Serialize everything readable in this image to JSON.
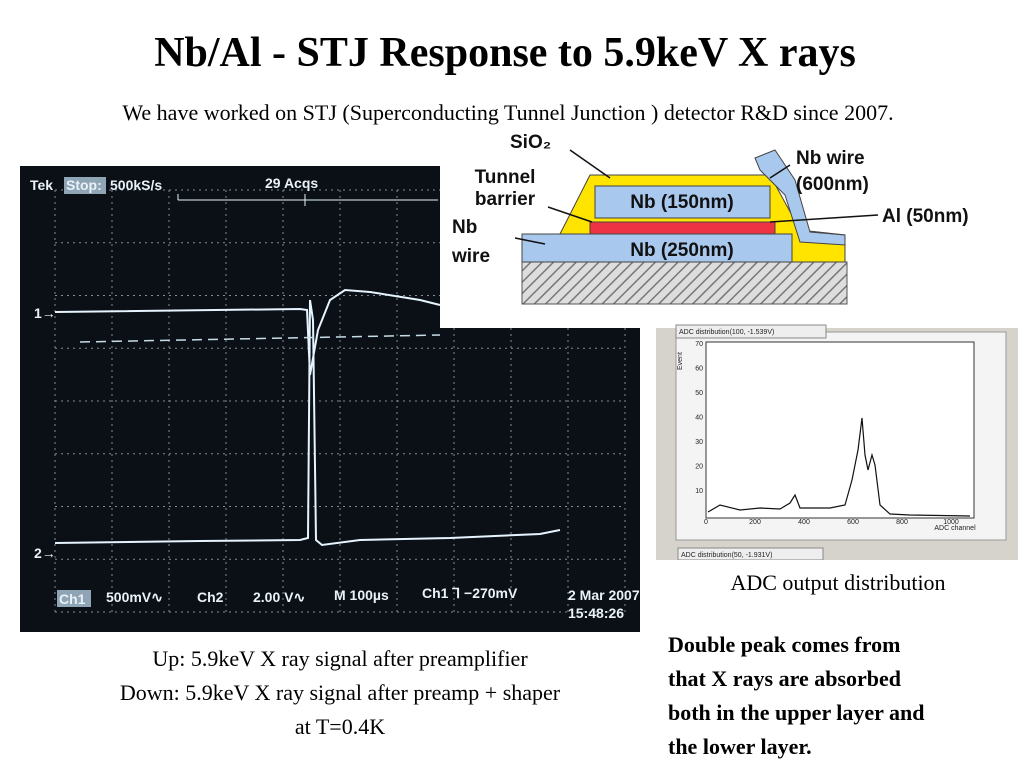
{
  "title": "Nb/Al - STJ  Response to 5.9keV X rays",
  "subtitle": "We have worked on STJ (Superconducting Tunnel Junction ) detector R&D since 2007.",
  "scope": {
    "tek": "Tek",
    "stop": "Stop:",
    "rate": "500kS/s",
    "acqs": "29 Acqs",
    "ch1_marker": "1→",
    "ch2_marker": "2→",
    "ch1": "Ch1",
    "ch1_scale": "500mV∿",
    "ch2": "Ch2",
    "ch2_scale": "2.00 V∿",
    "time": "M  100µs",
    "trig": "Ch1  ⅂  −270mV",
    "date": "2 Mar 2007",
    "clock": "15:48:26"
  },
  "diagram": {
    "sio2": "SiO₂",
    "tunnel": "Tunnel",
    "barrier": "barrier",
    "nb_wire_top": "Nb wire",
    "nb_wire_top_size": "(600nm)",
    "nb_top": "Nb (150nm)",
    "al": "Al (50nm)",
    "nb_bottom": "Nb (250nm)",
    "nb_wire_left": "Nb",
    "nb_wire_left_2": "wire"
  },
  "adc": {
    "panel_title": "ADC distribution(100, -1.539V)",
    "panel_title_2": "ADC distribution(50, -1.931V)",
    "y_label": "Event",
    "x_label": "ADC channel",
    "xticks": [
      "0",
      "200",
      "400",
      "600",
      "800",
      "1000"
    ],
    "yticks": [
      "70",
      "60",
      "50",
      "40",
      "30",
      "20",
      "10"
    ],
    "caption": "ADC output distribution"
  },
  "scope_caption": [
    "Up: 5.9keV X ray signal after preamplifier",
    "Down: 5.9keV X ray signal after preamp + shaper",
    "at T=0.4K"
  ],
  "note": [
    "Double peak comes from",
    "that X rays are absorbed",
    "both in the upper layer and",
    "the lower layer."
  ]
}
